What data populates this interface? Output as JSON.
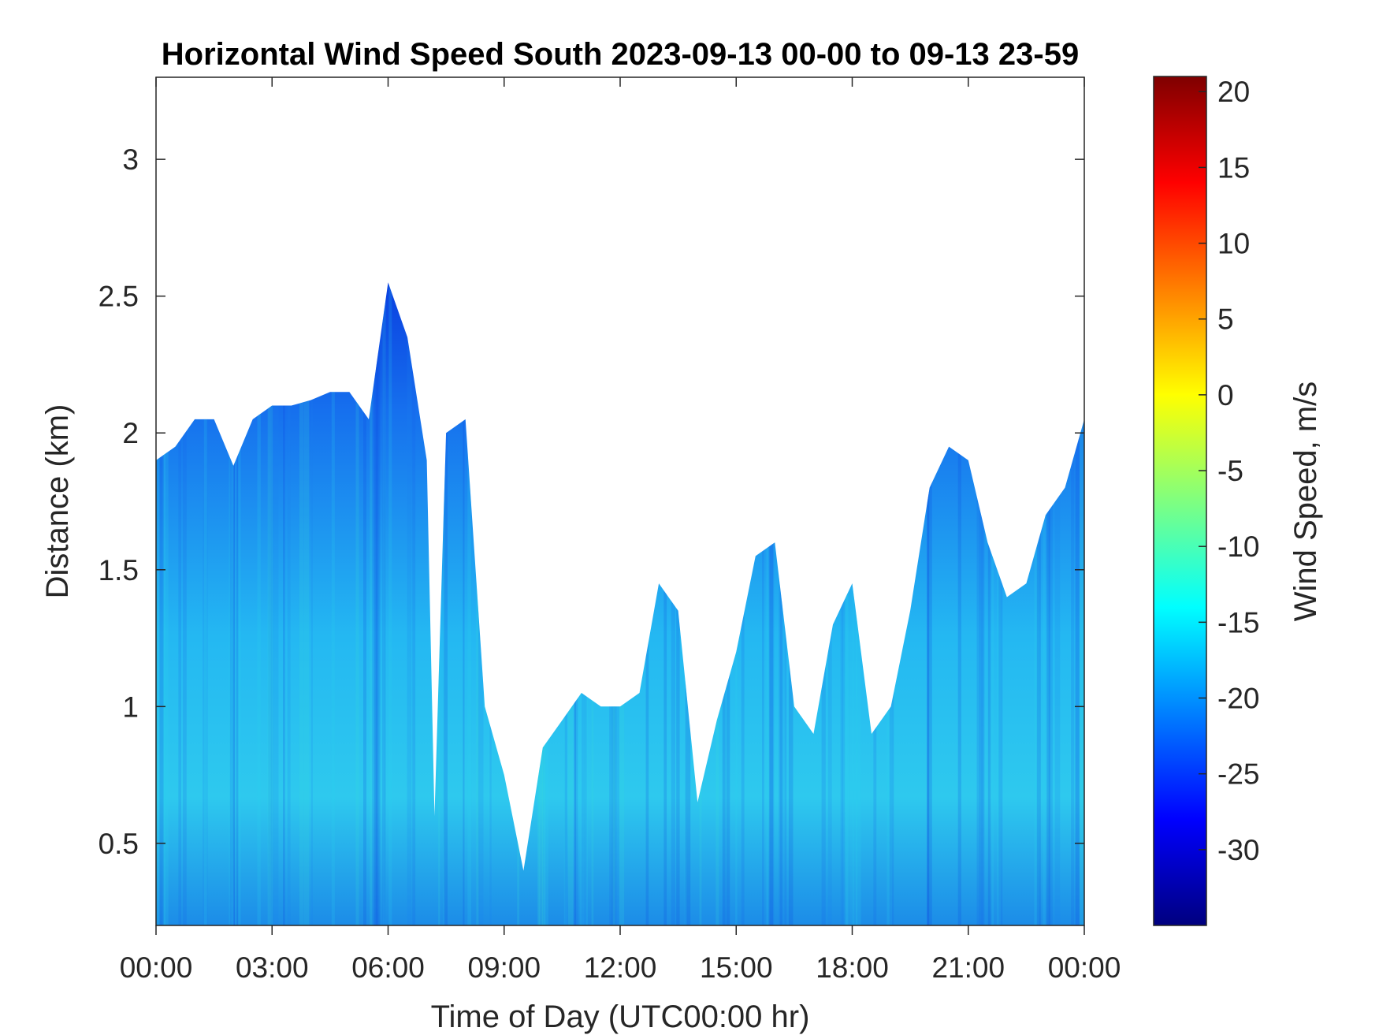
{
  "chart_data": {
    "type": "heatmap",
    "title": "Horizontal Wind Speed South 2023-09-13 00-00 to 09-13 23-59",
    "xlabel": "Time of Day (UTC00:00 hr)",
    "ylabel": "Distance (km)",
    "colorbar_label": "Wind Speed, m/s",
    "colormap": "jet",
    "x_unit": "hours",
    "xlim": [
      0,
      24
    ],
    "ylim": [
      0.2,
      3.3
    ],
    "clim": [
      -35,
      21
    ],
    "xticks": [
      {
        "value": 0,
        "label": "00:00"
      },
      {
        "value": 3,
        "label": "03:00"
      },
      {
        "value": 6,
        "label": "06:00"
      },
      {
        "value": 9,
        "label": "09:00"
      },
      {
        "value": 12,
        "label": "12:00"
      },
      {
        "value": 15,
        "label": "15:00"
      },
      {
        "value": 18,
        "label": "18:00"
      },
      {
        "value": 21,
        "label": "21:00"
      },
      {
        "value": 24,
        "label": "00:00"
      }
    ],
    "yticks": [
      {
        "value": 0.5,
        "label": "0.5"
      },
      {
        "value": 1,
        "label": "1"
      },
      {
        "value": 1.5,
        "label": "1.5"
      },
      {
        "value": 2,
        "label": "2"
      },
      {
        "value": 2.5,
        "label": "2.5"
      },
      {
        "value": 3,
        "label": "3"
      }
    ],
    "colorbar_ticks": [
      {
        "value": 20,
        "label": "20"
      },
      {
        "value": 15,
        "label": "15"
      },
      {
        "value": 10,
        "label": "10"
      },
      {
        "value": 5,
        "label": "5"
      },
      {
        "value": 0,
        "label": "0"
      },
      {
        "value": -5,
        "label": "-5"
      },
      {
        "value": -10,
        "label": "-10"
      },
      {
        "value": -15,
        "label": "-15"
      },
      {
        "value": -20,
        "label": "-20"
      },
      {
        "value": -25,
        "label": "-25"
      },
      {
        "value": -30,
        "label": "-30"
      }
    ],
    "data_top_km": [
      [
        0.0,
        1.9
      ],
      [
        0.5,
        1.95
      ],
      [
        1.0,
        2.05
      ],
      [
        1.5,
        2.05
      ],
      [
        2.0,
        1.88
      ],
      [
        2.5,
        2.05
      ],
      [
        3.0,
        2.1
      ],
      [
        3.5,
        2.1
      ],
      [
        4.0,
        2.12
      ],
      [
        4.5,
        2.15
      ],
      [
        5.0,
        2.15
      ],
      [
        5.5,
        2.05
      ],
      [
        6.0,
        2.55
      ],
      [
        6.5,
        2.35
      ],
      [
        7.0,
        1.9
      ],
      [
        7.2,
        0.6
      ],
      [
        7.5,
        2.0
      ],
      [
        8.0,
        2.05
      ],
      [
        8.5,
        1.0
      ],
      [
        9.0,
        0.75
      ],
      [
        9.5,
        0.4
      ],
      [
        10.0,
        0.85
      ],
      [
        10.5,
        0.95
      ],
      [
        11.0,
        1.05
      ],
      [
        11.5,
        1.0
      ],
      [
        12.0,
        1.0
      ],
      [
        12.5,
        1.05
      ],
      [
        13.0,
        1.45
      ],
      [
        13.5,
        1.35
      ],
      [
        14.0,
        0.65
      ],
      [
        14.5,
        0.95
      ],
      [
        15.0,
        1.2
      ],
      [
        15.5,
        1.55
      ],
      [
        16.0,
        1.6
      ],
      [
        16.5,
        1.0
      ],
      [
        17.0,
        0.9
      ],
      [
        17.5,
        1.3
      ],
      [
        18.0,
        1.45
      ],
      [
        18.5,
        0.9
      ],
      [
        19.0,
        1.0
      ],
      [
        19.5,
        1.35
      ],
      [
        20.0,
        1.8
      ],
      [
        20.5,
        1.95
      ],
      [
        21.0,
        1.9
      ],
      [
        21.5,
        1.6
      ],
      [
        22.0,
        1.4
      ],
      [
        22.5,
        1.45
      ],
      [
        23.0,
        1.7
      ],
      [
        23.5,
        1.8
      ],
      [
        24.0,
        2.05
      ]
    ]
  }
}
